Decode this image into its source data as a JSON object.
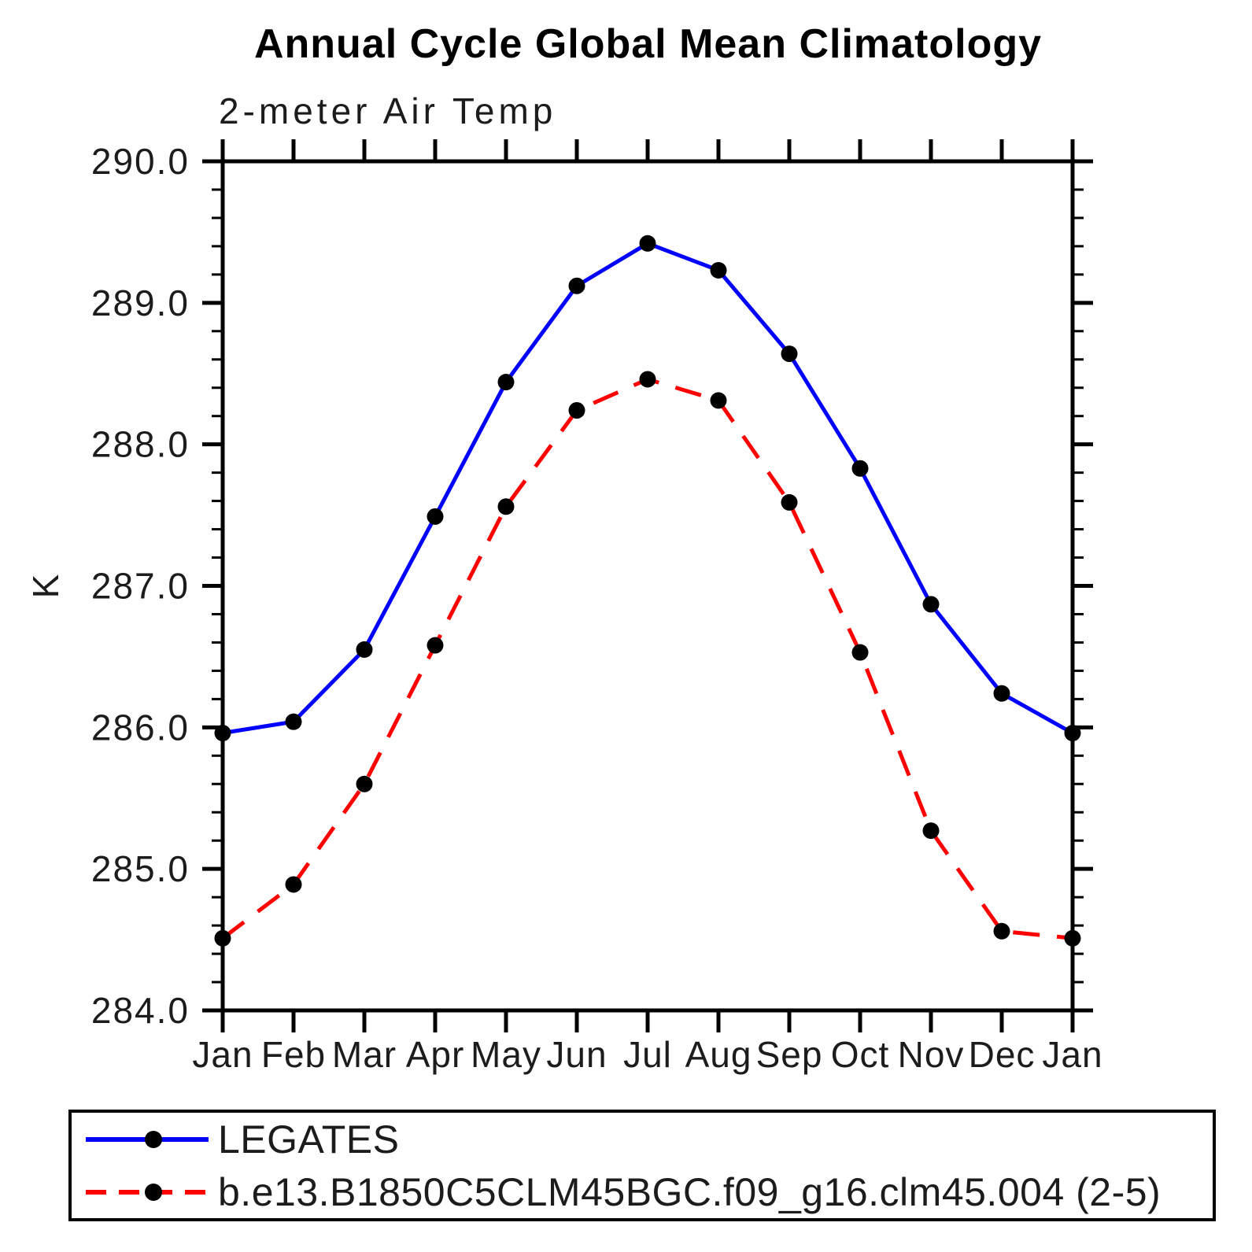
{
  "chart_data": {
    "type": "line",
    "title": "Annual Cycle Global Mean Climatology",
    "subtitle": "2-meter Air Temp",
    "xlabel": "",
    "ylabel": "K",
    "categories": [
      "Jan",
      "Feb",
      "Mar",
      "Apr",
      "May",
      "Jun",
      "Jul",
      "Aug",
      "Sep",
      "Oct",
      "Nov",
      "Dec",
      "Jan"
    ],
    "series": [
      {
        "name": "LEGATES",
        "color": "#0000ff",
        "line_style": "solid",
        "marker": "circle",
        "marker_color": "#000000",
        "values": [
          285.96,
          286.04,
          286.55,
          287.49,
          288.44,
          289.12,
          289.42,
          289.23,
          288.64,
          287.83,
          286.87,
          286.24,
          285.96
        ]
      },
      {
        "name": "b.e13.B1850C5CLM45BGC.f09_g16.clm45.004 (2-5)",
        "color": "#ff0000",
        "line_style": "dashed",
        "marker": "circle",
        "marker_color": "#000000",
        "values": [
          284.51,
          284.89,
          285.6,
          286.58,
          287.56,
          288.24,
          288.46,
          288.31,
          287.59,
          286.53,
          285.27,
          284.56,
          284.51
        ]
      }
    ],
    "ylim": [
      284.0,
      290.0
    ],
    "ytick_interval": 1.0,
    "yminor_interval": 0.2,
    "ytick_labels": [
      "284.0",
      "285.0",
      "286.0",
      "287.0",
      "288.0",
      "289.0",
      "290.0"
    ],
    "grid": false,
    "legend_position": "bottom"
  }
}
